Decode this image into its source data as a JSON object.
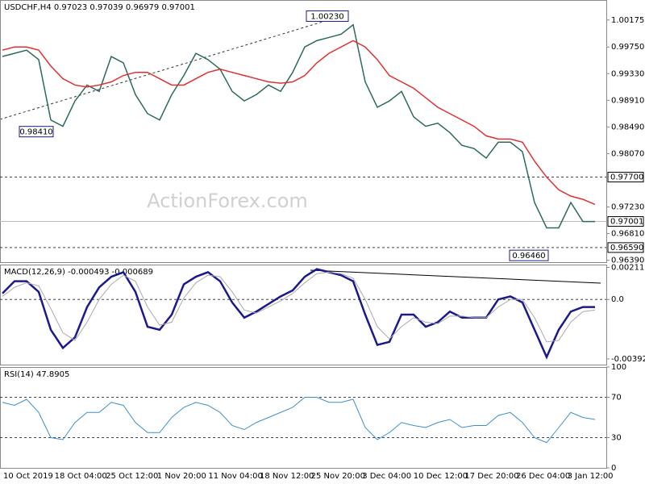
{
  "chart_data": [
    {
      "type": "line",
      "title": "USDCHF,H4  0.97023 0.97039 0.96979 0.97001",
      "watermark": "ActionForex.com",
      "ylim": [
        0.9636,
        1.0049
      ],
      "yticks": [
        {
          "value": 1.00175,
          "label": "1.00175"
        },
        {
          "value": 0.9975,
          "label": "0.99750"
        },
        {
          "value": 0.9933,
          "label": "0.99330"
        },
        {
          "value": 0.9891,
          "label": "0.98910"
        },
        {
          "value": 0.9849,
          "label": "0.98490"
        },
        {
          "value": 0.9807,
          "label": "0.98070"
        },
        {
          "value": 0.9723,
          "label": "0.97230"
        },
        {
          "value": 0.9681,
          "label": "0.96810"
        },
        {
          "value": 0.9639,
          "label": "0.96390"
        }
      ],
      "levels": [
        {
          "value": 0.977,
          "label": "0.97700",
          "style": "dashed"
        },
        {
          "value": 0.97001,
          "label": "0.97001",
          "style": "solid"
        },
        {
          "value": 0.9659,
          "label": "0.96590",
          "style": "dashed"
        }
      ],
      "annotations": [
        {
          "value": 1.0023,
          "label": "1.00230"
        },
        {
          "value": 0.9841,
          "label": "0.98410"
        },
        {
          "value": 0.9646,
          "label": "0.96460"
        }
      ],
      "series": [
        {
          "name": "USDCHF",
          "color": "#2b6a5c",
          "values": [
            0.996,
            0.9965,
            0.997,
            0.9955,
            0.986,
            0.985,
            0.989,
            0.9915,
            0.9905,
            0.996,
            0.995,
            0.99,
            0.987,
            0.986,
            0.99,
            0.993,
            0.9965,
            0.9955,
            0.994,
            0.9905,
            0.989,
            0.99,
            0.9915,
            0.9905,
            0.9935,
            0.9975,
            0.9985,
            0.999,
            0.9995,
            1.001,
            0.992,
            0.988,
            0.989,
            0.9905,
            0.9865,
            0.985,
            0.9855,
            0.984,
            0.982,
            0.9815,
            0.98,
            0.9825,
            0.9825,
            0.981,
            0.973,
            0.969,
            0.969,
            0.973,
            0.97,
            0.97
          ]
        },
        {
          "name": "MA",
          "color": "#e03030",
          "values": [
            0.997,
            0.9975,
            0.9975,
            0.997,
            0.9945,
            0.9925,
            0.9915,
            0.9912,
            0.9915,
            0.992,
            0.993,
            0.9935,
            0.9935,
            0.9925,
            0.9915,
            0.9915,
            0.9925,
            0.9935,
            0.994,
            0.9935,
            0.993,
            0.9925,
            0.992,
            0.9918,
            0.992,
            0.993,
            0.995,
            0.9965,
            0.9975,
            0.9985,
            0.9975,
            0.9955,
            0.993,
            0.992,
            0.991,
            0.9895,
            0.988,
            0.987,
            0.986,
            0.985,
            0.9835,
            0.983,
            0.983,
            0.9825,
            0.9795,
            0.977,
            0.975,
            0.974,
            0.9735,
            0.9727
          ]
        }
      ],
      "x_labels": [
        "10 Oct 2019",
        "18 Oct 04:00",
        "25 Oct 12:00",
        "1 Nov 20:00",
        "11 Nov 04:00",
        "18 Nov 12:00",
        "25 Nov 20:00",
        "3 Dec 04:00",
        "10 Dec 12:00",
        "17 Dec 20:00",
        "26 Dec 04:00",
        "3 Jan 12:00"
      ]
    },
    {
      "type": "line",
      "title": "MACD(12,26,9) -0.000493 -0.000689",
      "ylim": [
        -0.0043,
        0.0023
      ],
      "yticks": [
        {
          "value": 0.002113,
          "label": "0.002113"
        },
        {
          "value": 0,
          "label": "0.0"
        },
        {
          "value": -0.003922,
          "label": "-0.003922"
        }
      ],
      "levels": [
        {
          "value": 0,
          "style": "dashed"
        }
      ],
      "series": [
        {
          "name": "MACD",
          "color": "#1a1a8c",
          "width": 2.5,
          "values": [
            0.0004,
            0.0012,
            0.0012,
            0.0005,
            -0.002,
            -0.0032,
            -0.0025,
            -0.0005,
            0.0008,
            0.0015,
            0.0018,
            0.0005,
            -0.0018,
            -0.002,
            -0.001,
            0.001,
            0.0015,
            0.0018,
            0.0012,
            -0.0002,
            -0.0012,
            -0.0008,
            -0.0003,
            0.0002,
            0.0006,
            0.0015,
            0.002,
            0.0018,
            0.0016,
            0.0012,
            -0.001,
            -0.003,
            -0.0028,
            -0.001,
            -0.001,
            -0.0018,
            -0.0015,
            -0.0008,
            -0.0012,
            -0.0012,
            -0.0012,
            0,
            0.0002,
            -0.0002,
            -0.002,
            -0.0038,
            -0.002,
            -0.0008,
            -0.0005,
            -0.0005
          ]
        },
        {
          "name": "Signal",
          "color": "#aaaaaa",
          "width": 1,
          "values": [
            0.0002,
            0.0008,
            0.0011,
            0.0009,
            -0.0006,
            -0.0022,
            -0.0027,
            -0.0015,
            0,
            0.001,
            0.0016,
            0.0012,
            -0.0005,
            -0.0017,
            -0.0015,
            0.0001,
            0.0011,
            0.0016,
            0.0015,
            0.0005,
            -0.0007,
            -0.0009,
            -0.0005,
            -0.0001,
            0.0004,
            0.0011,
            0.0017,
            0.0018,
            0.0017,
            0.0014,
            0,
            -0.0018,
            -0.0026,
            -0.0018,
            -0.0012,
            -0.0015,
            -0.0016,
            -0.0011,
            -0.0011,
            -0.0012,
            -0.0012,
            -0.0005,
            0,
            0,
            -0.0012,
            -0.0028,
            -0.0027,
            -0.0015,
            -0.0008,
            -0.0007
          ]
        }
      ]
    },
    {
      "type": "line",
      "title": "RSI(14) 47.8905",
      "ylim": [
        0,
        100
      ],
      "yticks": [
        100,
        70,
        30,
        0
      ],
      "levels": [
        {
          "value": 70,
          "style": "dashed"
        },
        {
          "value": 30,
          "style": "dashed"
        }
      ],
      "series": [
        {
          "name": "RSI",
          "color": "#3a8fd0",
          "width": 1,
          "values": [
            65,
            62,
            68,
            55,
            30,
            28,
            45,
            55,
            55,
            65,
            62,
            45,
            35,
            35,
            50,
            60,
            65,
            62,
            55,
            42,
            38,
            45,
            50,
            55,
            60,
            70,
            70,
            65,
            65,
            68,
            40,
            28,
            35,
            45,
            42,
            40,
            45,
            48,
            40,
            42,
            42,
            52,
            55,
            45,
            30,
            25,
            40,
            55,
            50,
            48
          ]
        }
      ]
    }
  ]
}
